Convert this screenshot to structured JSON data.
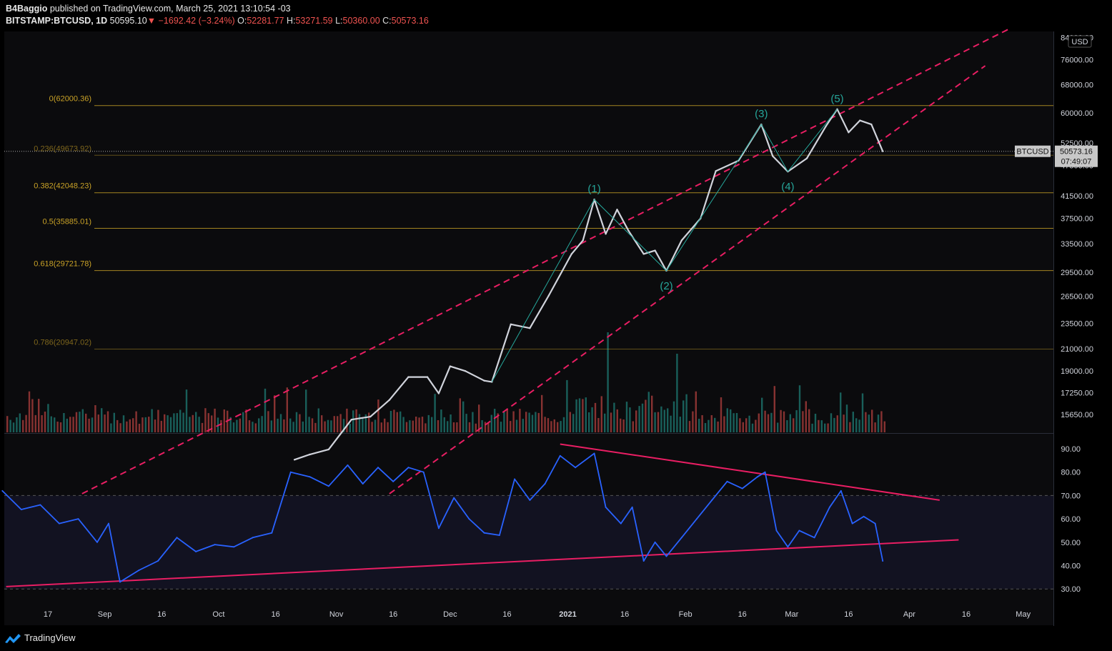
{
  "header": {
    "publisher": "B4Baggio",
    "published_on": "published on TradingView.com, March 25, 2021 13:10:54 -03",
    "symbol": "BITSTAMP:BTCUSD, 1D",
    "last": "50595.10",
    "down_arrow": "▼",
    "change": "−1692.42 (−3.24%)",
    "open_label": "O:",
    "open": "52281.77",
    "high_label": "H:",
    "high": "53271.59",
    "low_label": "L:",
    "low": "50360.00",
    "close_label": "C:",
    "close": "50573.16"
  },
  "footer": {
    "brand": "TradingView"
  },
  "colors": {
    "background": "#0b0b0d",
    "price_line": "#d1d4dc",
    "fib_line": "#c9a227",
    "channel": "#e91e63",
    "wave_label": "#26a69a",
    "rsi_line": "#2962ff",
    "volume_up": "#26a69a",
    "volume_down": "#ef5350"
  },
  "chart_data": [
    {
      "type": "line",
      "series": [
        {
          "x": [
            "2020-10-21",
            "2020-10-25",
            "2020-10-30",
            "2020-11-05",
            "2020-11-10",
            "2020-11-15",
            "2020-11-20",
            "2020-11-25",
            "2020-11-28",
            "2020-12-01",
            "2020-12-05",
            "2020-12-10",
            "2020-12-12",
            "2020-12-17",
            "2020-12-22",
            "2020-12-27",
            "2021-01-02",
            "2021-01-05",
            "2021-01-08",
            "2021-01-11",
            "2021-01-14",
            "2021-01-17",
            "2021-01-21",
            "2021-01-24",
            "2021-01-27",
            "2021-01-31",
            "2021-02-05",
            "2021-02-09",
            "2021-02-15",
            "2021-02-21",
            "2021-02-24",
            "2021-02-28",
            "2021-03-05",
            "2021-03-10",
            "2021-03-13",
            "2021-03-16",
            "2021-03-19",
            "2021-03-22",
            "2021-03-25"
          ],
          "values": [
            12800,
            13100,
            13400,
            15300,
            15500,
            16700,
            18500,
            18500,
            17200,
            19400,
            19000,
            18200,
            18100,
            23400,
            23000,
            26600,
            32000,
            34000,
            40800,
            35000,
            39000,
            35500,
            32000,
            32500,
            29700,
            34000,
            37500,
            46300,
            48500,
            57000,
            49500,
            46200,
            49000,
            56500,
            61000,
            55000,
            58000,
            57000,
            50573
          ]
        }
      ],
      "fib_levels": [
        {
          "ratio": "0",
          "price": 62000.36,
          "label": "0(62000.36)"
        },
        {
          "ratio": "0.236",
          "price": 49673.92,
          "label": "0.236(49673.92)"
        },
        {
          "ratio": "0.382",
          "price": 42048.23,
          "label": "0.382(42048.23)"
        },
        {
          "ratio": "0.5",
          "price": 35885.01,
          "label": "0.5(35885.01)"
        },
        {
          "ratio": "0.618",
          "price": 29721.78,
          "label": "0.618(29721.78)"
        },
        {
          "ratio": "0.786",
          "price": 20947.02,
          "label": "0.786(20947.02)"
        }
      ],
      "wave_labels": [
        {
          "label": "(1)",
          "x": "2021-01-08",
          "price": 40800
        },
        {
          "label": "(2)",
          "x": "2021-01-27",
          "price": 29700
        },
        {
          "label": "(3)",
          "x": "2021-02-21",
          "price": 57000
        },
        {
          "label": "(4)",
          "x": "2021-02-28",
          "price": 46200
        },
        {
          "label": "(5)",
          "x": "2021-03-13",
          "price": 61000
        }
      ],
      "channel_lines": [
        {
          "from": {
            "x": "2020-08-26",
            "price": 11000
          },
          "to": {
            "x": "2021-04-27",
            "price": 87000
          }
        },
        {
          "from": {
            "x": "2020-11-15",
            "price": 11000
          },
          "to": {
            "x": "2021-04-21",
            "price": 74000
          }
        }
      ],
      "y_ticks": [
        "84000.00",
        "76000.00",
        "68000.00",
        "60000.00",
        "52500.00",
        "47500.00",
        "41500.00",
        "37500.00",
        "33500.00",
        "29500.00",
        "26500.00",
        "23500.00",
        "21000.00",
        "19000.00",
        "17250.00",
        "15650.00"
      ],
      "y_unit": "USD",
      "price_tag": {
        "symbol": "BTCUSD",
        "price": "50573.16",
        "countdown": "07:49:07"
      },
      "scale": "log"
    },
    {
      "type": "line",
      "series": [
        {
          "x": [
            "2020-08-05",
            "2020-08-10",
            "2020-08-15",
            "2020-08-20",
            "2020-08-25",
            "2020-08-30",
            "2020-09-02",
            "2020-09-05",
            "2020-09-10",
            "2020-09-15",
            "2020-09-20",
            "2020-09-25",
            "2020-09-30",
            "2020-10-05",
            "2020-10-10",
            "2020-10-15",
            "2020-10-20",
            "2020-10-25",
            "2020-10-30",
            "2020-11-04",
            "2020-11-08",
            "2020-11-12",
            "2020-11-16",
            "2020-11-20",
            "2020-11-24",
            "2020-11-28",
            "2020-12-02",
            "2020-12-06",
            "2020-12-10",
            "2020-12-14",
            "2020-12-18",
            "2020-12-22",
            "2020-12-26",
            "2020-12-30",
            "2021-01-03",
            "2021-01-08",
            "2021-01-11",
            "2021-01-15",
            "2021-01-18",
            "2021-01-21",
            "2021-01-24",
            "2021-01-27",
            "2021-01-31",
            "2021-02-04",
            "2021-02-08",
            "2021-02-12",
            "2021-02-16",
            "2021-02-20",
            "2021-02-22",
            "2021-02-25",
            "2021-02-28",
            "2021-03-03",
            "2021-03-07",
            "2021-03-11",
            "2021-03-14",
            "2021-03-17",
            "2021-03-20",
            "2021-03-23",
            "2021-03-25"
          ],
          "values": [
            72,
            64,
            66,
            58,
            60,
            50,
            58,
            33,
            38,
            42,
            52,
            46,
            49,
            48,
            52,
            54,
            80,
            78,
            74,
            83,
            75,
            82,
            76,
            82,
            80,
            56,
            69,
            60,
            54,
            53,
            77,
            68,
            75,
            87,
            82,
            88,
            65,
            58,
            65,
            42,
            50,
            44,
            52,
            60,
            68,
            76,
            73,
            78,
            80,
            55,
            48,
            55,
            52,
            65,
            72,
            58,
            61,
            58,
            42
          ]
        }
      ],
      "y_ticks": [
        "90.00",
        "80.00",
        "70.00",
        "60.00",
        "50.00",
        "40.00",
        "30.00"
      ],
      "bands": {
        "upper": 70,
        "lower": 30
      },
      "trendlines": [
        {
          "from": {
            "x": "2020-12-30",
            "value": 92
          },
          "to": {
            "x": "2021-04-09",
            "value": 68
          }
        },
        {
          "from": {
            "x": "2020-08-06",
            "value": 31
          },
          "to": {
            "x": "2021-04-14",
            "value": 51
          }
        }
      ]
    }
  ],
  "x_ticks": [
    "17",
    "Sep",
    "16",
    "Oct",
    "16",
    "Nov",
    "16",
    "Dec",
    "16",
    "2021",
    "16",
    "Feb",
    "16",
    "Mar",
    "16",
    "Apr",
    "16",
    "May"
  ],
  "x_tick_dates": [
    "2020-08-17",
    "2020-09-01",
    "2020-09-16",
    "2020-10-01",
    "2020-10-16",
    "2020-11-01",
    "2020-11-16",
    "2020-12-01",
    "2020-12-16",
    "2021-01-01",
    "2021-01-16",
    "2021-02-01",
    "2021-02-16",
    "2021-03-01",
    "2021-03-16",
    "2021-04-01",
    "2021-04-16",
    "2021-05-01"
  ]
}
